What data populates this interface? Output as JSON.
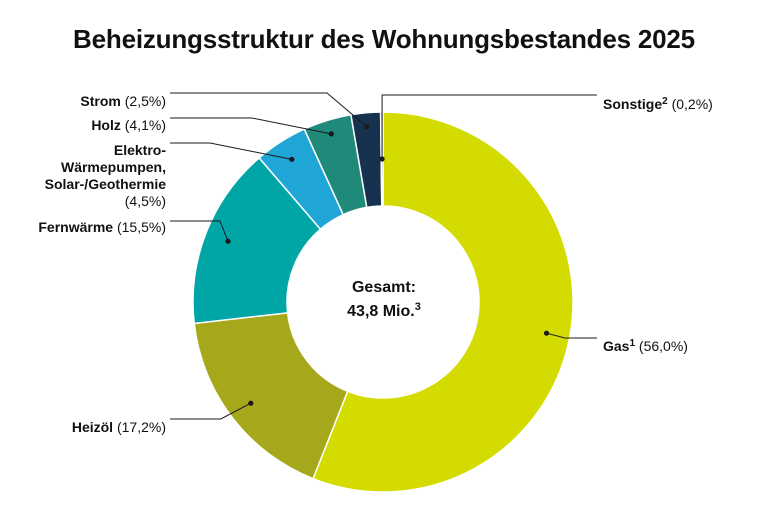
{
  "chart_data": {
    "type": "pie",
    "title": "Beheizungsstruktur des Wohnungsbestandes 2025",
    "center_label": {
      "line1": "Gesamt:",
      "line2": "43,8 Mio.",
      "line2_sup": "3"
    },
    "slices": [
      {
        "name": "Gas",
        "sup": "1",
        "value": 56.0,
        "value_label": "(56,0%)",
        "color": "#d4db00"
      },
      {
        "name": "Heizöl",
        "sup": "",
        "value": 17.2,
        "value_label": "(17,2%)",
        "color": "#a5a81a"
      },
      {
        "name": "Fernwärme",
        "sup": "",
        "value": 15.5,
        "value_label": "(15,5%)",
        "color": "#00a6a6"
      },
      {
        "name": "Elektro-\nWärmepumpen,\nSolar-/Geothermie",
        "sup": "",
        "value": 4.5,
        "value_label": "(4,5%)",
        "color": "#1fa5d6"
      },
      {
        "name": "Holz",
        "sup": "",
        "value": 4.1,
        "value_label": "(4,1%)",
        "color": "#1f8a7a"
      },
      {
        "name": "Strom",
        "sup": "",
        "value": 2.5,
        "value_label": "(2,5%)",
        "color": "#16324f"
      },
      {
        "name": "Sonstige",
        "sup": "2",
        "value": 0.2,
        "value_label": "(0,2%)",
        "color": "#5a5a5a"
      }
    ]
  }
}
